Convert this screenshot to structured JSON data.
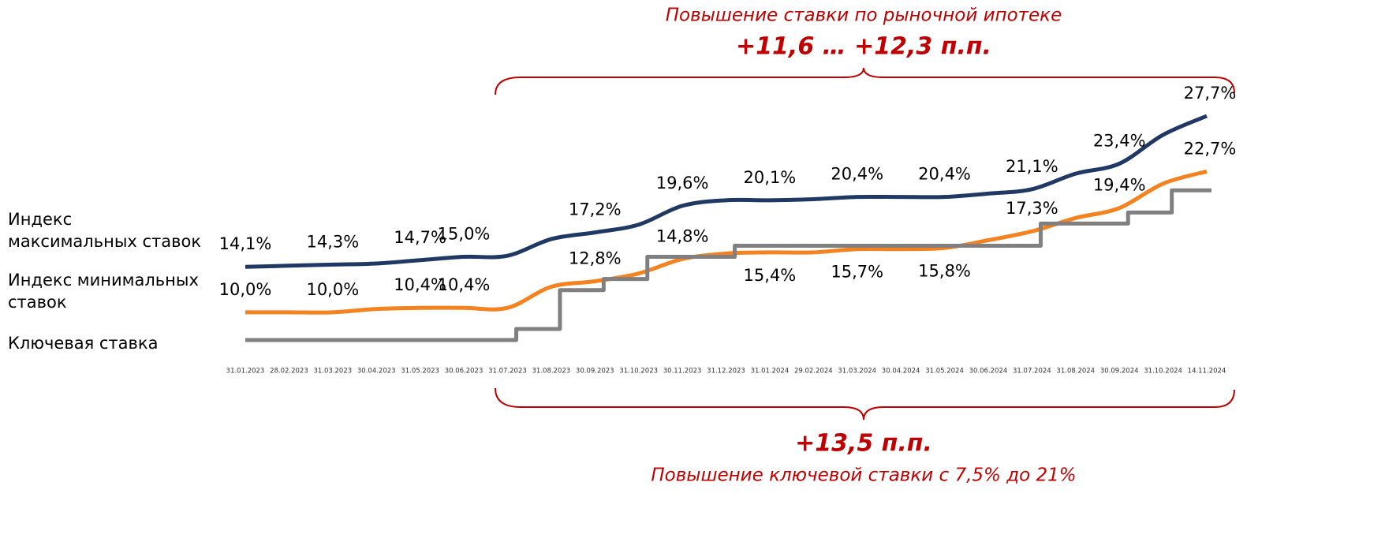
{
  "chart_data": {
    "type": "line",
    "annotations": {
      "top_text": "Повышение ставки по рыночной ипотеке",
      "top_value": "+11,6 … +12,3 п.п.",
      "bottom_value": "+13,5 п.п.",
      "bottom_text": "Повышение ключевой ставки с 7,5% до 21%"
    },
    "categories": [
      "31.01.2023",
      "28.02.2023",
      "31.03.2023",
      "30.04.2023",
      "31.05.2023",
      "30.06.2023",
      "31.07.2023",
      "31.08.2023",
      "30.09.2023",
      "31.10.2023",
      "30.11.2023",
      "31.12.2023",
      "31.01.2024",
      "29.02.2024",
      "31.03.2024",
      "30.04.2024",
      "31.05.2024",
      "30.06.2024",
      "31.07.2024",
      "31.08.2024",
      "30.09.2024",
      "31.10.2024",
      "14.11.2024"
    ],
    "series": [
      {
        "name": "Индекс максимальных ставок",
        "color": "#1f3864",
        "style": "smooth",
        "values": [
          14.1,
          14.2,
          14.3,
          14.4,
          14.7,
          15.0,
          15.1,
          16.6,
          17.2,
          17.9,
          19.6,
          20.1,
          20.1,
          20.2,
          20.4,
          20.4,
          20.4,
          20.7,
          21.1,
          22.5,
          23.4,
          26.0,
          27.7
        ],
        "value_labels": [
          "14,1%",
          null,
          "14,3%",
          null,
          "14,7%",
          "15,0%",
          null,
          null,
          "17,2%",
          null,
          "19,6%",
          null,
          "20,1%",
          null,
          "20,4%",
          null,
          "20,4%",
          null,
          "21,1%",
          null,
          "23,4%",
          null,
          "27,7%"
        ]
      },
      {
        "name": "Индекс минимальных ставок",
        "color": "#f4821f",
        "style": "smooth",
        "values": [
          10.0,
          10.0,
          10.0,
          10.3,
          10.4,
          10.4,
          10.4,
          12.3,
          12.8,
          13.5,
          14.8,
          15.3,
          15.4,
          15.4,
          15.7,
          15.7,
          15.8,
          16.5,
          17.3,
          18.5,
          19.4,
          21.6,
          22.7
        ],
        "value_labels": [
          "10,0%",
          null,
          "10,0%",
          null,
          "10,4%",
          "10,4%",
          null,
          null,
          "12,8%",
          null,
          "14,8%",
          null,
          "15,4%",
          null,
          "15,7%",
          null,
          "15,8%",
          null,
          "17,3%",
          null,
          "19,4%",
          null,
          "22,7%"
        ]
      },
      {
        "name": "Ключевая ставка",
        "color": "#808080",
        "style": "step",
        "values": [
          7.5,
          7.5,
          7.5,
          7.5,
          7.5,
          7.5,
          8.5,
          12,
          13,
          15,
          15,
          16,
          16,
          16,
          16,
          16,
          16,
          16,
          18,
          18,
          19,
          21,
          21
        ]
      }
    ]
  }
}
